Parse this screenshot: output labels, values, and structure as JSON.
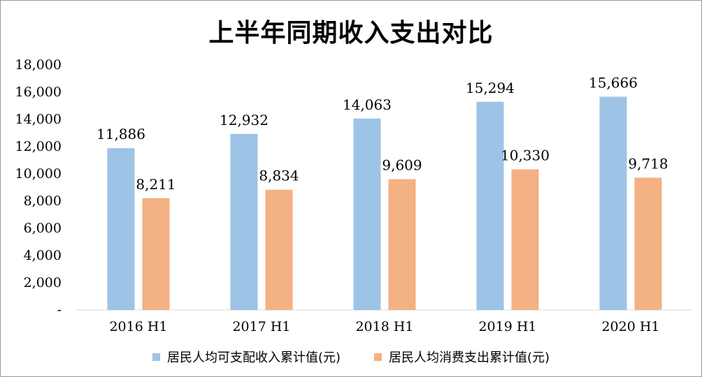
{
  "chart_data": {
    "type": "bar",
    "title": "上半年同期收入支出对比",
    "categories": [
      "2016 H1",
      "2017 H1",
      "2018 H1",
      "2019 H1",
      "2020 H1"
    ],
    "series": [
      {
        "name": "居民人均可支配收入累计值(元)",
        "values": [
          11886,
          12932,
          14063,
          15294,
          15666
        ],
        "labels": [
          "11,886",
          "12,932",
          "14,063",
          "15,294",
          "15,666"
        ],
        "color": "#9dc3e6"
      },
      {
        "name": "居民人均消费支出累计值(元)",
        "values": [
          8211,
          8834,
          9609,
          10330,
          9718
        ],
        "labels": [
          "8,211",
          "8,834",
          "9,609",
          "10,330",
          "9,718"
        ],
        "color": "#f4b183"
      }
    ],
    "ylim": [
      0,
      18000
    ],
    "yticks": [
      0,
      2000,
      4000,
      6000,
      8000,
      10000,
      12000,
      14000,
      16000,
      18000
    ],
    "ytick_labels": [
      "-",
      "2,000",
      "4,000",
      "6,000",
      "8,000",
      "10,000",
      "12,000",
      "14,000",
      "16,000",
      "18,000"
    ],
    "grid": false,
    "legend": "bottom"
  }
}
